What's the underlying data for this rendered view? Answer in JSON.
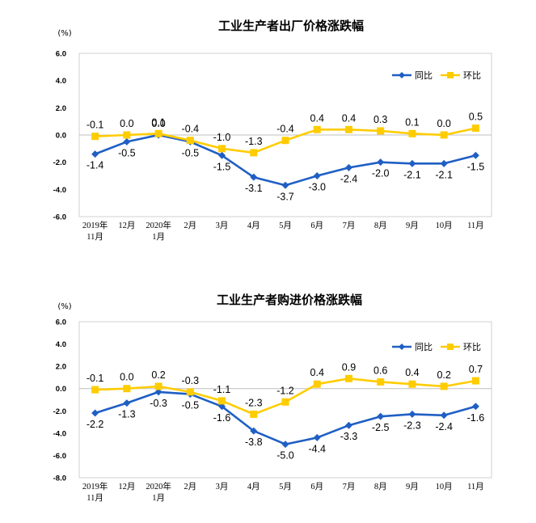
{
  "colors": {
    "yoy": "#1f5fc4",
    "mom": "#ffcc00"
  },
  "chart_data": [
    {
      "type": "line",
      "title": "工业生产者出厂价格涨跌幅",
      "unit": "(%)",
      "categories": [
        "2019年\n11月",
        "12月",
        "2020年\n1月",
        "2月",
        "3月",
        "4月",
        "5月",
        "6月",
        "7月",
        "8月",
        "9月",
        "10月",
        "11月"
      ],
      "yticks": [
        "6.0",
        "4.0",
        "2.0",
        "0.0",
        "-2.0",
        "-4.0",
        "-6.0"
      ],
      "ylim": [
        -6,
        6
      ],
      "series": [
        {
          "name": "同比",
          "key": "yoy",
          "values": [
            -1.4,
            -0.5,
            0.0,
            -0.5,
            -1.5,
            -3.1,
            -3.7,
            -3.0,
            -2.4,
            -2.0,
            -2.1,
            -2.1,
            -1.5
          ],
          "labels": [
            "-1.4",
            "-0.5",
            "0.0",
            "-0.5",
            "-1.5",
            "-3.1",
            "-3.7",
            "-3.0",
            "-2.4",
            "-2.0",
            "-2.1",
            "-2.1",
            "-1.5"
          ]
        },
        {
          "name": "环比",
          "key": "mom",
          "values": [
            -0.1,
            0.0,
            0.1,
            -0.4,
            -1.0,
            -1.3,
            -0.4,
            0.4,
            0.4,
            0.3,
            0.1,
            0.0,
            0.5
          ],
          "labels": [
            "-0.1",
            "0.0",
            "0.1",
            "-0.4",
            "-1.0",
            "-1.3",
            "-0.4",
            "0.4",
            "0.4",
            "0.3",
            "0.1",
            "0.0",
            "0.5"
          ]
        }
      ]
    },
    {
      "type": "line",
      "title": "工业生产者购进价格涨跌幅",
      "unit": "(%)",
      "categories": [
        "2019年\n11月",
        "12月",
        "2020年\n1月",
        "2月",
        "3月",
        "4月",
        "5月",
        "6月",
        "7月",
        "8月",
        "9月",
        "10月",
        "11月"
      ],
      "yticks": [
        "6.0",
        "4.0",
        "2.0",
        "0.0",
        "-2.0",
        "-4.0",
        "-6.0",
        "-8.0"
      ],
      "ylim": [
        -8,
        6
      ],
      "series": [
        {
          "name": "同比",
          "key": "yoy",
          "values": [
            -2.2,
            -1.3,
            -0.3,
            -0.5,
            -1.6,
            -3.8,
            -5.0,
            -4.4,
            -3.3,
            -2.5,
            -2.3,
            -2.4,
            -1.6
          ],
          "labels": [
            "-2.2",
            "-1.3",
            "-0.3",
            "-0.5",
            "-1.6",
            "-3.8",
            "-5.0",
            "-4.4",
            "-3.3",
            "-2.5",
            "-2.3",
            "-2.4",
            "-1.6"
          ]
        },
        {
          "name": "环比",
          "key": "mom",
          "values": [
            -0.1,
            0.0,
            0.2,
            -0.3,
            -1.1,
            -2.3,
            -1.2,
            0.4,
            0.9,
            0.6,
            0.4,
            0.2,
            0.7
          ],
          "labels": [
            "-0.1",
            "0.0",
            "0.2",
            "-0.3",
            "-1.1",
            "-2.3",
            "-1.2",
            "0.4",
            "0.9",
            "0.6",
            "0.4",
            "0.2",
            "0.7"
          ]
        }
      ]
    }
  ]
}
